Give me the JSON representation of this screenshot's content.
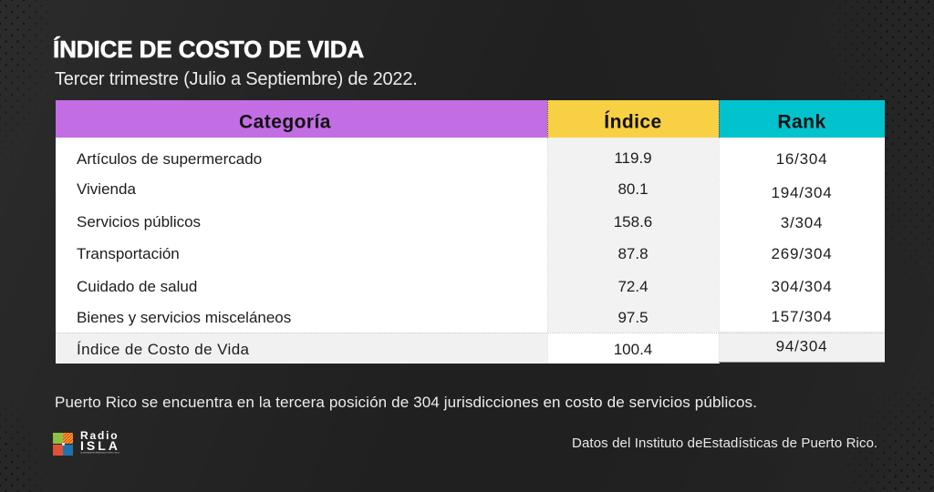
{
  "title": "ÍNDICE DE COSTO DE VIDA",
  "subtitle": "Tercer trimestre (Julio a Septiembre) de 2022.",
  "colors": {
    "header_category": "#c26de4",
    "header_index": "#f8d043",
    "header_rank": "#02c3cd",
    "background": "#202020"
  },
  "table": {
    "headers": [
      {
        "label": "Categoría"
      },
      {
        "label": "Índice"
      },
      {
        "label": "Rank"
      }
    ],
    "rows": [
      {
        "category": "Artículos de supermercado",
        "index": "119.9",
        "rank": "16/304"
      },
      {
        "category": "Vivienda",
        "index": "80.1",
        "rank": "194/304"
      },
      {
        "category": "Servicios públicos",
        "index": "158.6",
        "rank": "3/304"
      },
      {
        "category": "Transportación",
        "index": "87.8",
        "rank": "269/304"
      },
      {
        "category": "Cuidado de salud",
        "index": "72.4",
        "rank": "304/304"
      },
      {
        "category": "Bienes y servicios misceláneos",
        "index": "97.5",
        "rank": "157/304"
      }
    ],
    "footer_row": {
      "category": "Índice de Costo de Vida",
      "index": "100.4",
      "rank": "94/304"
    }
  },
  "note": "Puerto Rico se encuentra en la tercera posición de 304 jurisdicciones en costo de servicios públicos.",
  "attribution": "Datos del Instituto deEstadísticas de Puerto Rico.",
  "logo": {
    "brand_top": "Radio",
    "brand_bottom": "ISLA",
    "tagline": "LA VENTANA INFORMATIVA DE PUERTO RICO"
  },
  "chart_data": {
    "type": "table",
    "title": "ÍNDICE DE COSTO DE VIDA",
    "subtitle": "Tercer trimestre (Julio a Septiembre) de 2022.",
    "columns": [
      "Categoría",
      "Índice",
      "Rank"
    ],
    "rows": [
      [
        "Artículos de supermercado",
        119.9,
        "16/304"
      ],
      [
        "Vivienda",
        80.1,
        "194/304"
      ],
      [
        "Servicios públicos",
        158.6,
        "3/304"
      ],
      [
        "Transportación",
        87.8,
        "269/304"
      ],
      [
        "Cuidado de salud",
        72.4,
        "304/304"
      ],
      [
        "Bienes y servicios misceláneos",
        97.5,
        "157/304"
      ],
      [
        "Índice de Costo de Vida",
        100.4,
        "94/304"
      ]
    ],
    "note": "Puerto Rico se encuentra en la tercera posición de 304 jurisdicciones en costo de servicios públicos.",
    "source": "Datos del Instituto deEstadísticas de Puerto Rico."
  }
}
